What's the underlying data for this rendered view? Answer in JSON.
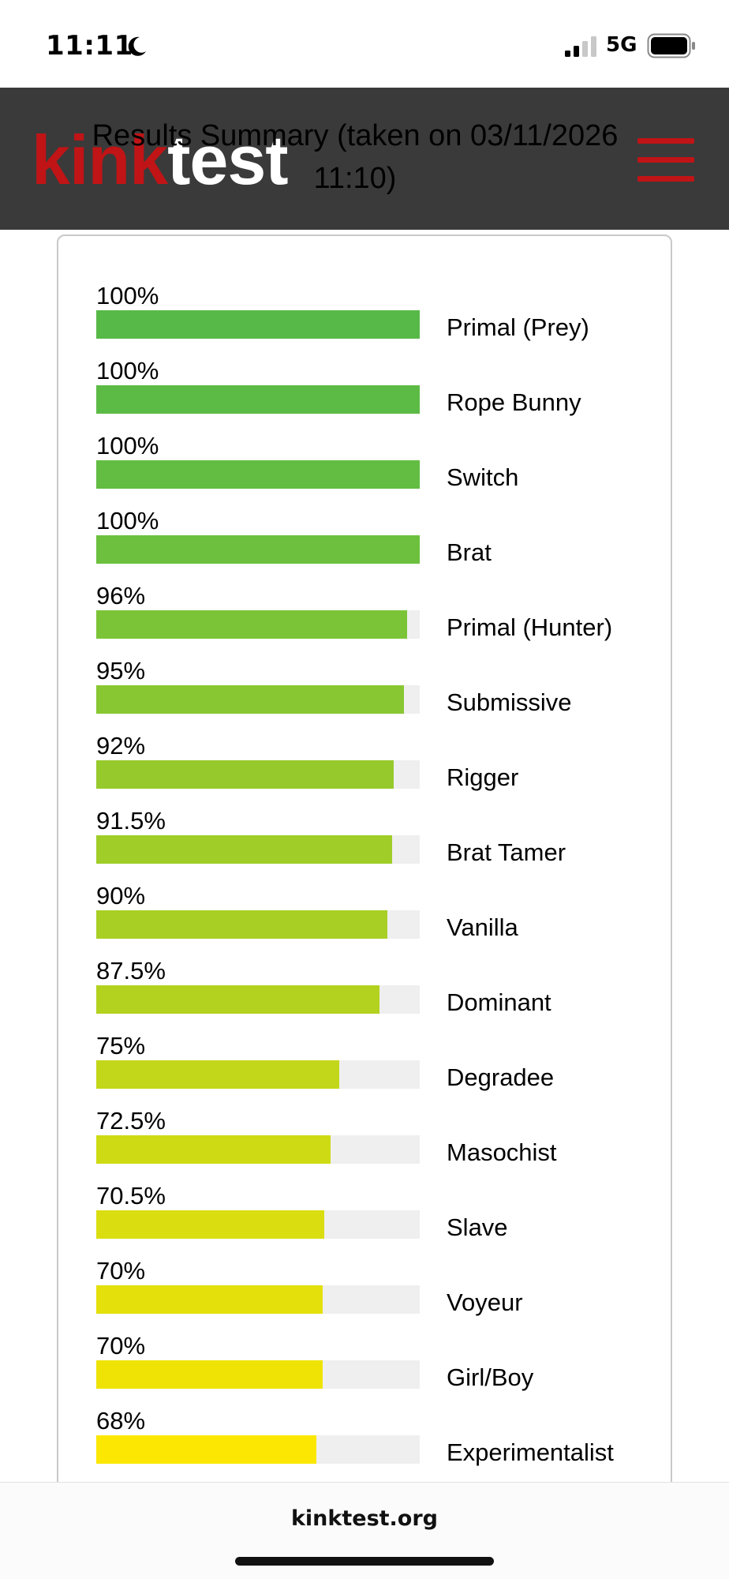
{
  "status_bar": {
    "time": "11:11",
    "network": "5G",
    "icons": [
      "moon-icon",
      "signal-icon",
      "battery-icon"
    ]
  },
  "header": {
    "logo_part1": "kink",
    "logo_part2": "test",
    "title": "Results Summary (taken on 03/11/2026 11:10)",
    "logo_colors": {
      "kink": "#c01416",
      "test": "#ffffff"
    },
    "background": "#3a3a3a",
    "menu_icon": "hamburger-menu-icon"
  },
  "results": [
    {
      "percent_label": "100%",
      "value": 100,
      "name": "Primal (Prey)",
      "color": "#57b947"
    },
    {
      "percent_label": "100%",
      "value": 100,
      "name": "Rope Bunny",
      "color": "#5cbb45"
    },
    {
      "percent_label": "100%",
      "value": 100,
      "name": "Switch",
      "color": "#62bd42"
    },
    {
      "percent_label": "100%",
      "value": 100,
      "name": "Brat",
      "color": "#6cc03e"
    },
    {
      "percent_label": "96%",
      "value": 96,
      "name": "Primal (Hunter)",
      "color": "#7cc437"
    },
    {
      "percent_label": "95%",
      "value": 95,
      "name": "Submissive",
      "color": "#88c732"
    },
    {
      "percent_label": "92%",
      "value": 92,
      "name": "Rigger",
      "color": "#96ca2c"
    },
    {
      "percent_label": "91.5%",
      "value": 91.5,
      "name": "Brat Tamer",
      "color": "#a0cd28"
    },
    {
      "percent_label": "90%",
      "value": 90,
      "name": "Vanilla",
      "color": "#a8cf24"
    },
    {
      "percent_label": "87.5%",
      "value": 87.5,
      "name": "Dominant",
      "color": "#b2d21f"
    },
    {
      "percent_label": "75%",
      "value": 75,
      "name": "Degradee",
      "color": "#c2d719"
    },
    {
      "percent_label": "72.5%",
      "value": 72.5,
      "name": "Masochist",
      "color": "#cedb14"
    },
    {
      "percent_label": "70.5%",
      "value": 70.5,
      "name": "Slave",
      "color": "#dade10"
    },
    {
      "percent_label": "70%",
      "value": 70,
      "name": "Voyeur",
      "color": "#e3e00b"
    },
    {
      "percent_label": "70%",
      "value": 70,
      "name": "Girl/Boy",
      "color": "#efe306"
    },
    {
      "percent_label": "68%",
      "value": 68,
      "name": "Experimentalist",
      "color": "#fbe701"
    }
  ],
  "bottom_bar": {
    "url": "kinktest.org"
  }
}
